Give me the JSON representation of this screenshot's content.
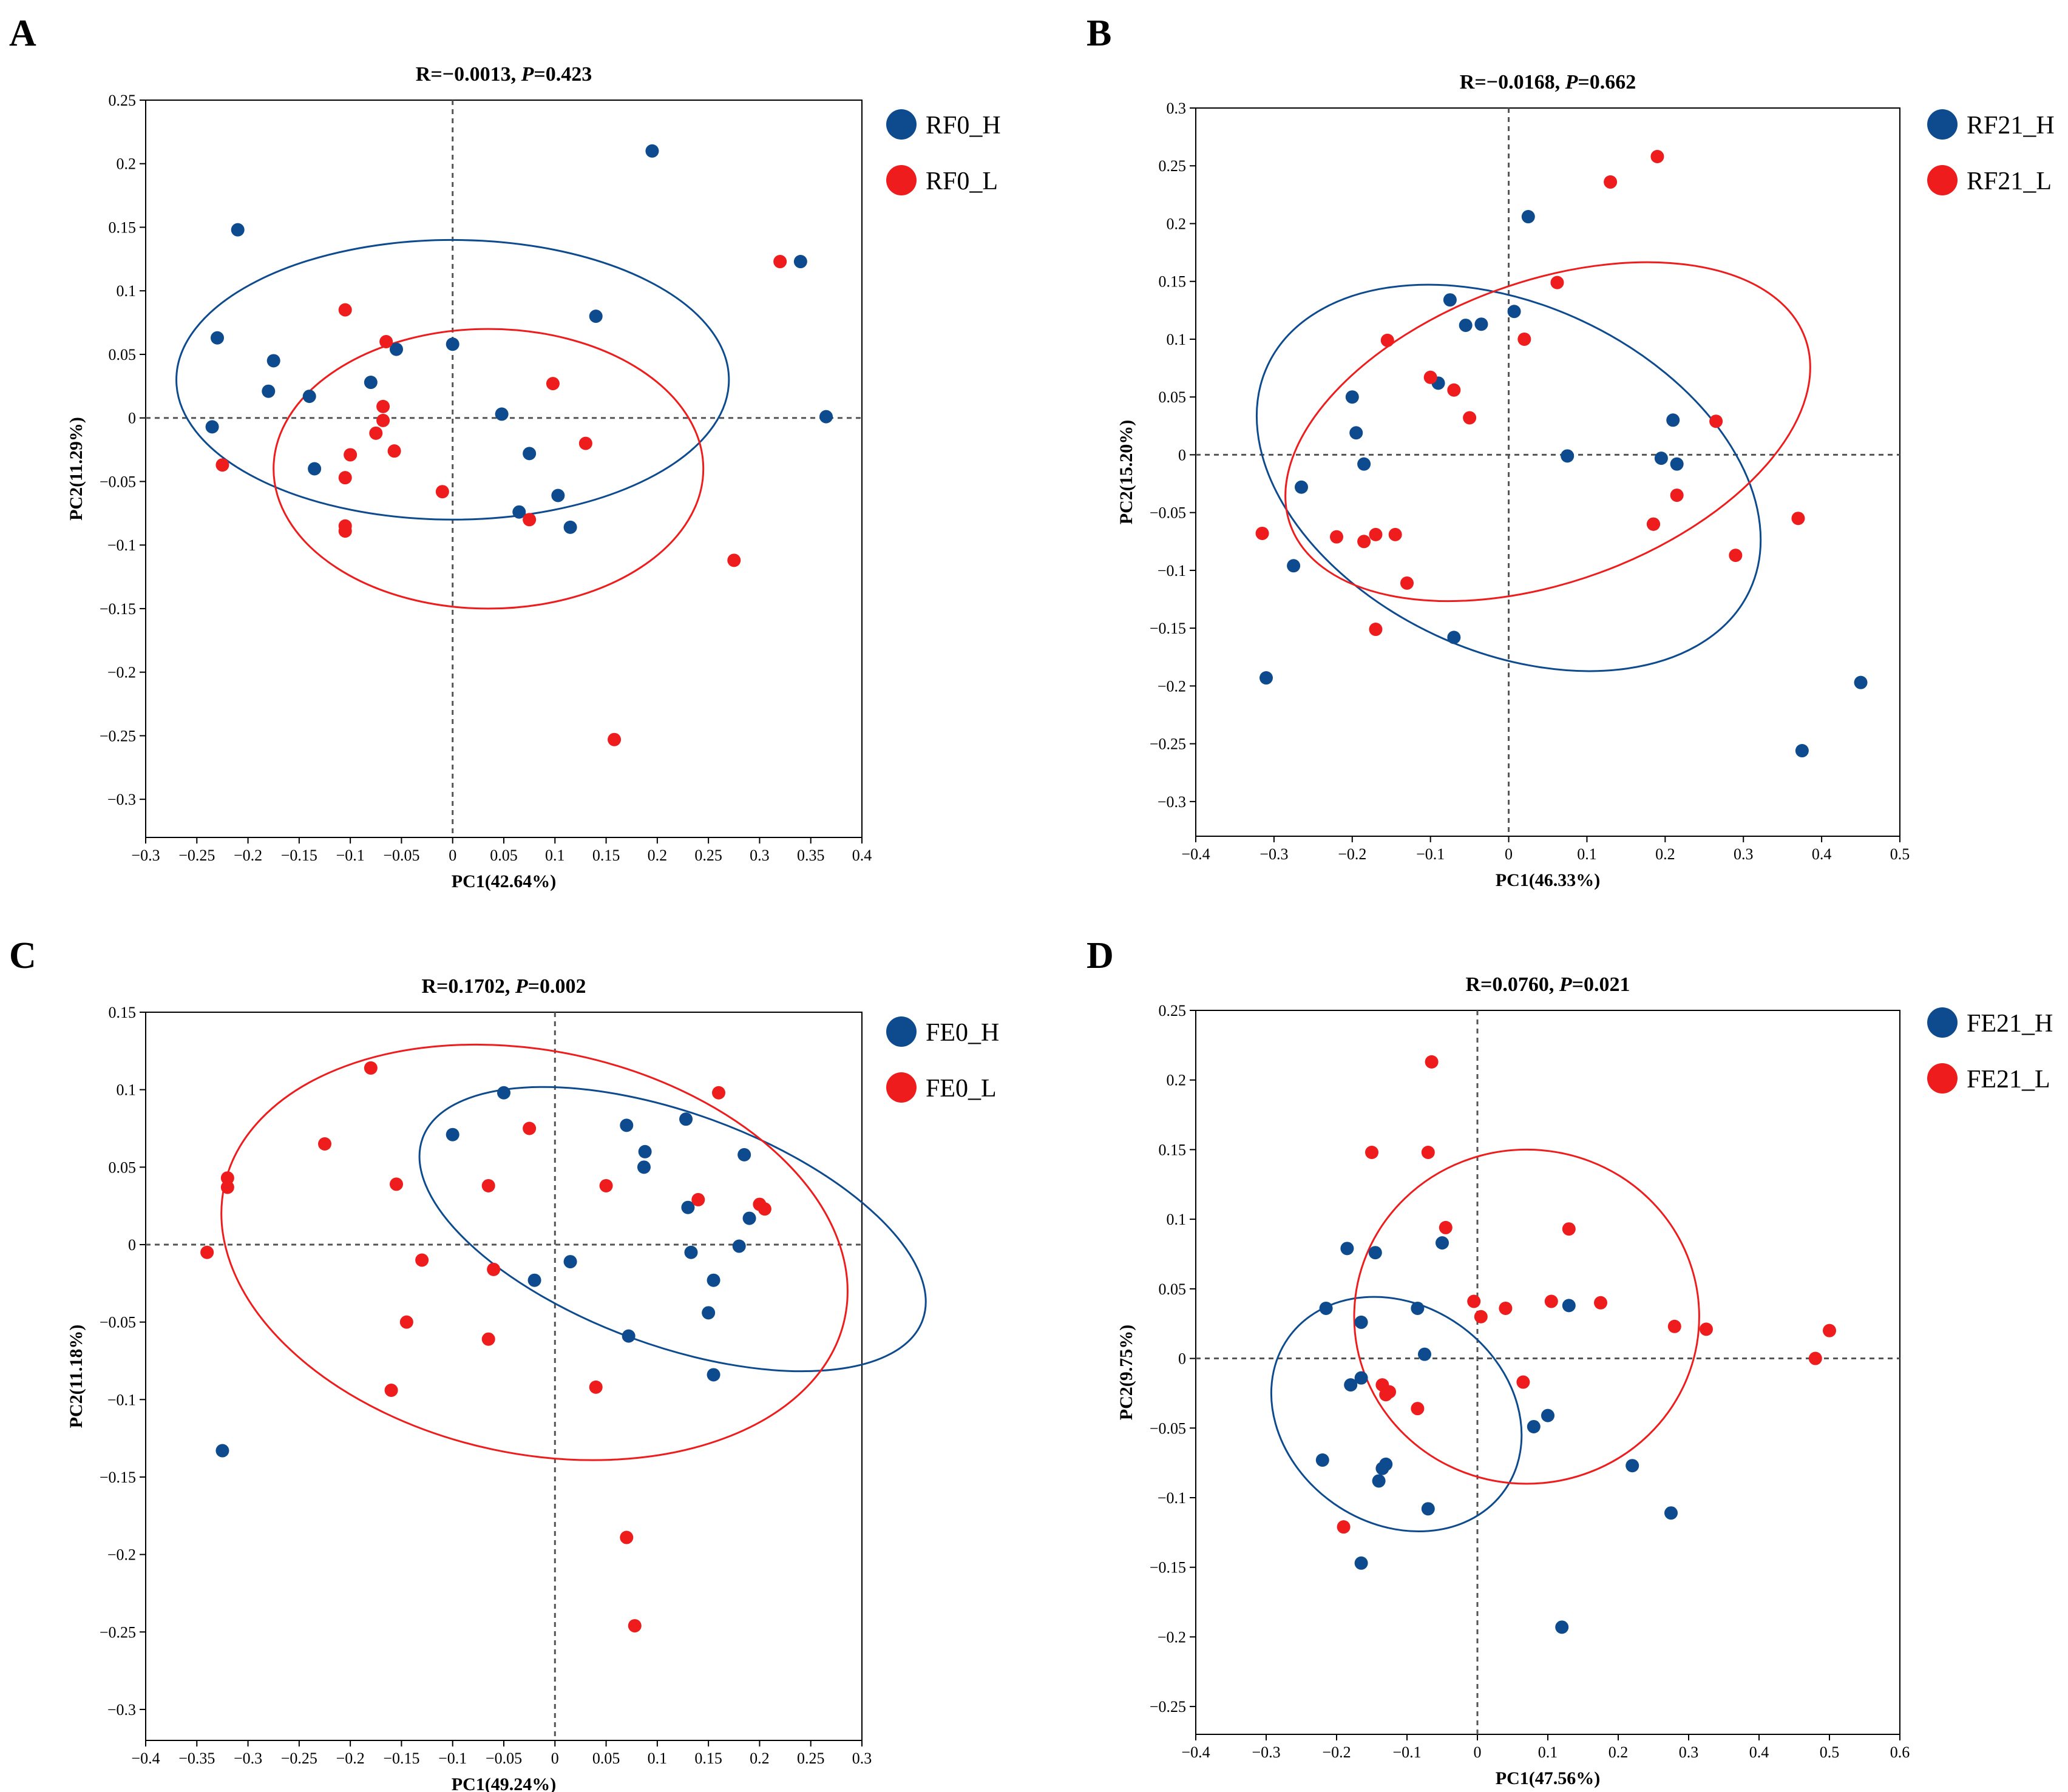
{
  "chart_data": [
    {
      "type": "scatter",
      "panel": "A",
      "title_stat": "R=−0.0013, ",
      "title_p_label": "P",
      "title_p_value": "=0.423",
      "xlabel": "PC1(42.64%)",
      "ylabel": "PC2(11.29%)",
      "xlim": [
        -0.3,
        0.4
      ],
      "ylim": [
        -0.33,
        0.25
      ],
      "xticks": [
        -0.3,
        -0.25,
        -0.2,
        -0.15,
        -0.1,
        -0.05,
        0,
        0.05,
        0.1,
        0.15,
        0.2,
        0.25,
        0.3,
        0.35,
        0.4
      ],
      "yticks": [
        -0.3,
        -0.25,
        -0.2,
        -0.15,
        -0.1,
        -0.05,
        0,
        0.05,
        0.1,
        0.15,
        0.2,
        0.25
      ],
      "xtick_labels": [
        "−0.3",
        "−0.25",
        "−0.2",
        "−0.15",
        "−0.1",
        "−0.05",
        "0",
        "0.05",
        "0.1",
        "0.15",
        "0.2",
        "0.25",
        "0.3",
        "0.35",
        "0.4"
      ],
      "ytick_labels": [
        "−0.3",
        "−0.25",
        "−0.2",
        "−0.15",
        "−0.1",
        "−0.05",
        "0",
        "0.05",
        "0.1",
        "0.15",
        "0.2",
        "0.25"
      ],
      "series": [
        {
          "name": "RF0_H",
          "color": "#0e4b8e",
          "x": [
            0.195,
            -0.21,
            -0.23,
            -0.175,
            -0.18,
            -0.14,
            -0.08,
            -0.055,
            0,
            -0.235,
            -0.135,
            0.14,
            0.34,
            0.365,
            0.048,
            0.075,
            0.065,
            0.103,
            0.115
          ],
          "y": [
            0.21,
            0.148,
            0.063,
            0.045,
            0.021,
            0.017,
            0.028,
            0.054,
            0.058,
            -0.007,
            -0.04,
            0.08,
            0.123,
            0.001,
            0.003,
            -0.028,
            -0.074,
            -0.061,
            -0.086
          ],
          "ellipse": {
            "cx": 0.0,
            "cy": 0.03,
            "rx": 0.27,
            "ry": 0.11,
            "angle": 0
          }
        },
        {
          "name": "RF0_L",
          "color": "#ee1c1c",
          "x": [
            0.32,
            -0.105,
            -0.065,
            -0.068,
            -0.068,
            -0.075,
            -0.1,
            -0.057,
            -0.105,
            -0.225,
            -0.105,
            -0.105,
            -0.01,
            0.075,
            0.098,
            0.13,
            0.275,
            0.158
          ],
          "y": [
            0.123,
            0.085,
            0.06,
            0.009,
            -0.002,
            -0.012,
            -0.029,
            -0.026,
            -0.047,
            -0.037,
            -0.085,
            -0.089,
            -0.058,
            -0.08,
            0.027,
            -0.02,
            -0.112,
            -0.253
          ],
          "ellipse": {
            "cx": 0.035,
            "cy": -0.04,
            "rx": 0.21,
            "ry": 0.11,
            "angle": 0
          }
        }
      ]
    },
    {
      "type": "scatter",
      "panel": "B",
      "title_stat": "R=−0.0168, ",
      "title_p_label": "P",
      "title_p_value": "=0.662",
      "xlabel": "PC1(46.33%)",
      "ylabel": "PC2(15.20%)",
      "xlim": [
        -0.4,
        0.5
      ],
      "ylim": [
        -0.33,
        0.3
      ],
      "xticks": [
        -0.4,
        -0.3,
        -0.2,
        -0.1,
        0,
        0.1,
        0.2,
        0.3,
        0.4,
        0.5
      ],
      "yticks": [
        -0.3,
        -0.25,
        -0.2,
        -0.15,
        -0.1,
        -0.05,
        0,
        0.05,
        0.1,
        0.15,
        0.2,
        0.25,
        0.3
      ],
      "xtick_labels": [
        "−0.4",
        "−0.3",
        "−0.2",
        "−0.1",
        "0",
        "0.1",
        "0.2",
        "0.3",
        "0.4",
        "0.5"
      ],
      "ytick_labels": [
        "−0.3",
        "−0.25",
        "−0.2",
        "−0.15",
        "−0.1",
        "−0.05",
        "0",
        "0.05",
        "0.1",
        "0.15",
        "0.2",
        "0.25",
        "0.3"
      ],
      "series": [
        {
          "name": "RF21_H",
          "color": "#0e4b8e",
          "x": [
            0.025,
            -0.075,
            0.007,
            -0.055,
            -0.035,
            -0.2,
            -0.195,
            -0.185,
            -0.265,
            -0.09,
            0.075,
            0.21,
            0.215,
            0.195,
            0.185,
            -0.275,
            -0.31,
            -0.07,
            0.375,
            0.45
          ],
          "y": [
            0.206,
            0.134,
            0.124,
            0.112,
            0.113,
            0.05,
            0.019,
            -0.008,
            -0.028,
            0.062,
            -0.001,
            0.03,
            -0.008,
            -0.003,
            -0.06,
            -0.096,
            -0.193,
            -0.158,
            -0.256,
            -0.197
          ],
          "ellipse": {
            "cx": 0.0,
            "cy": -0.02,
            "rx": 0.34,
            "ry": 0.15,
            "angle": -25
          }
        },
        {
          "name": "RF21_L",
          "color": "#ee1c1c",
          "x": [
            0.19,
            0.13,
            0.062,
            0.02,
            -0.155,
            -0.1,
            -0.07,
            -0.05,
            -0.315,
            -0.22,
            -0.185,
            -0.17,
            -0.145,
            -0.13,
            -0.17,
            0.185,
            0.215,
            0.265,
            0.29,
            0.37
          ],
          "y": [
            0.258,
            0.236,
            0.149,
            0.1,
            0.099,
            0.067,
            0.056,
            0.032,
            -0.068,
            -0.071,
            -0.075,
            -0.069,
            -0.069,
            -0.111,
            -0.151,
            -0.06,
            -0.035,
            0.029,
            -0.087,
            -0.055
          ],
          "ellipse": {
            "cx": 0.05,
            "cy": 0.02,
            "rx": 0.35,
            "ry": 0.13,
            "angle": 20
          }
        }
      ]
    },
    {
      "type": "scatter",
      "panel": "C",
      "title_stat": "R=0.1702, ",
      "title_p_label": "P",
      "title_p_value": "=0.002",
      "xlabel": "PC1(49.24%)",
      "ylabel": "PC2(11.18%)",
      "xlim": [
        -0.4,
        0.3
      ],
      "ylim": [
        -0.32,
        0.15
      ],
      "xticks": [
        -0.4,
        -0.35,
        -0.3,
        -0.25,
        -0.2,
        -0.15,
        -0.1,
        -0.05,
        0,
        0.05,
        0.1,
        0.15,
        0.2,
        0.25,
        0.3
      ],
      "yticks": [
        -0.3,
        -0.25,
        -0.2,
        -0.15,
        -0.1,
        -0.05,
        0,
        0.05,
        0.1,
        0.15
      ],
      "xtick_labels": [
        "−0.4",
        "−0.35",
        "−0.3",
        "−0.25",
        "−0.2",
        "−0.15",
        "−0.1",
        "−0.05",
        "0",
        "0.05",
        "0.1",
        "0.15",
        "0.2",
        "0.25",
        "0.3"
      ],
      "ytick_labels": [
        "−0.3",
        "−0.25",
        "−0.2",
        "−0.15",
        "−0.1",
        "−0.05",
        "0",
        "0.05",
        "0.1",
        "0.15"
      ],
      "series": [
        {
          "name": "FE0_H",
          "color": "#0e4b8e",
          "x": [
            -0.05,
            -0.1,
            0.07,
            0.128,
            0.088,
            0.087,
            0.185,
            0.13,
            0.19,
            0.133,
            0.18,
            0.155,
            0.15,
            0.155,
            0.072,
            0.015,
            -0.02,
            -0.325
          ],
          "y": [
            0.098,
            0.071,
            0.077,
            0.081,
            0.06,
            0.05,
            0.058,
            0.024,
            0.017,
            -0.005,
            -0.001,
            -0.023,
            -0.044,
            -0.084,
            -0.059,
            -0.011,
            -0.023,
            -0.133
          ],
          "ellipse": {
            "cx": 0.115,
            "cy": 0.01,
            "rx": 0.26,
            "ry": 0.075,
            "angle": -20
          }
        },
        {
          "name": "FE0_L",
          "color": "#ee1c1c",
          "x": [
            -0.18,
            -0.225,
            -0.32,
            -0.32,
            -0.155,
            -0.065,
            -0.025,
            0.05,
            0.16,
            0.14,
            0.2,
            0.205,
            -0.34,
            -0.13,
            -0.06,
            -0.145,
            -0.16,
            -0.065,
            0.04,
            0.07,
            0.078
          ],
          "y": [
            0.114,
            0.065,
            0.043,
            0.037,
            0.039,
            0.038,
            0.075,
            0.038,
            0.098,
            0.029,
            0.026,
            0.023,
            -0.005,
            -0.01,
            -0.016,
            -0.05,
            -0.094,
            -0.061,
            -0.092,
            -0.189,
            -0.246
          ],
          "ellipse": {
            "cx": -0.02,
            "cy": -0.005,
            "rx": 0.31,
            "ry": 0.13,
            "angle": -12
          }
        }
      ]
    },
    {
      "type": "scatter",
      "panel": "D",
      "title_stat": "R=0.0760, ",
      "title_p_label": "P",
      "title_p_value": "=0.021",
      "xlabel": "PC1(47.56%)",
      "ylabel": "PC2(9.75%)",
      "xlim": [
        -0.4,
        0.6
      ],
      "ylim": [
        -0.27,
        0.25
      ],
      "xticks": [
        -0.4,
        -0.3,
        -0.2,
        -0.1,
        0,
        0.1,
        0.2,
        0.3,
        0.4,
        0.5,
        0.6
      ],
      "yticks": [
        -0.25,
        -0.2,
        -0.15,
        -0.1,
        -0.05,
        0,
        0.05,
        0.1,
        0.15,
        0.2,
        0.25
      ],
      "xtick_labels": [
        "−0.4",
        "−0.3",
        "−0.2",
        "−0.1",
        "0",
        "0.1",
        "0.2",
        "0.3",
        "0.4",
        "0.5",
        "0.6"
      ],
      "ytick_labels": [
        "−0.25",
        "−0.2",
        "−0.15",
        "−0.1",
        "−0.05",
        "0",
        "0.05",
        "0.1",
        "0.15",
        "0.2",
        "0.25"
      ],
      "series": [
        {
          "name": "FE21_H",
          "color": "#0e4b8e",
          "x": [
            -0.05,
            -0.185,
            -0.145,
            -0.215,
            -0.165,
            -0.085,
            -0.075,
            0.13,
            -0.165,
            -0.18,
            0.1,
            0.08,
            -0.22,
            -0.13,
            -0.135,
            -0.14,
            -0.07,
            0.22,
            0.275,
            -0.165,
            0.12
          ],
          "y": [
            0.083,
            0.079,
            0.076,
            0.036,
            0.026,
            0.036,
            0.003,
            0.038,
            -0.014,
            -0.019,
            -0.041,
            -0.049,
            -0.073,
            -0.076,
            -0.079,
            -0.088,
            -0.108,
            -0.077,
            -0.111,
            -0.147,
            -0.193
          ],
          "ellipse": {
            "cx": -0.115,
            "cy": -0.04,
            "rx": 0.155,
            "ry": 0.095,
            "angle": 55
          }
        },
        {
          "name": "FE21_L",
          "color": "#ee1c1c",
          "x": [
            -0.065,
            -0.15,
            -0.07,
            -0.045,
            0.13,
            -0.005,
            0.005,
            0.04,
            0.105,
            0.175,
            0.28,
            0.325,
            0.48,
            0.5,
            -0.135,
            -0.13,
            -0.125,
            -0.085,
            0.065,
            -0.19
          ],
          "y": [
            0.213,
            0.148,
            0.148,
            0.094,
            0.093,
            0.041,
            0.03,
            0.036,
            0.041,
            0.04,
            0.023,
            0.021,
            0.0,
            0.02,
            -0.019,
            -0.026,
            -0.024,
            -0.036,
            -0.017,
            -0.121
          ],
          "ellipse": {
            "cx": 0.07,
            "cy": 0.03,
            "rx": 0.245,
            "ry": 0.12,
            "angle": 0
          }
        }
      ]
    }
  ]
}
